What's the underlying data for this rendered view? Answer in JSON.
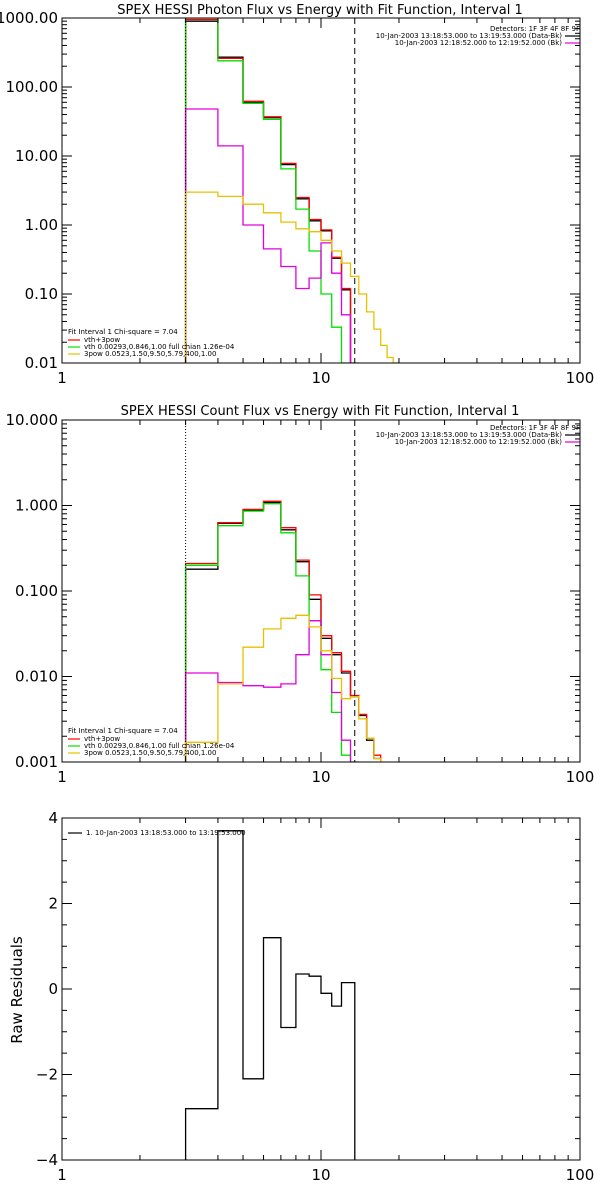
{
  "chart_data": [
    {
      "type": "line",
      "title": "SPEX HESSI Photon Flux vs Energy with Fit Function, Interval 1",
      "xscale": "log",
      "yscale": "log",
      "xlim": [
        1,
        100
      ],
      "ylim": [
        0.01,
        1000
      ],
      "xticks": [
        "1",
        "10",
        "100"
      ],
      "yticks": [
        "0.01",
        "0.10",
        "1.00",
        "10.00",
        "100.00",
        "1000.00"
      ],
      "ytick_values": [
        0.01,
        0.1,
        1,
        10,
        100,
        1000
      ],
      "detectors_text": "Detectors: 1F 3F 4F 8F 9F",
      "legend_right": [
        {
          "text": "10-Jan-2003 13:18:53.000 to 13:19:53.000 (Data-Bk)",
          "color": "#000000"
        },
        {
          "text": "10-Jan-2003 12:18:52.000 to 12:19:52.000 (Bk)",
          "color": "#e000e0"
        }
      ],
      "legend_left": [
        {
          "text": "Fit Interval 1     Chi-square = 7.04",
          "color": ""
        },
        {
          "text": "vth+3pow",
          "color": "#ff0000"
        },
        {
          "text": "vth 0.00293,0.846,1.00   full chian 1.26e-04",
          "color": "#00e000"
        },
        {
          "text": "3pow 0.0523,1.50,9.50,5.79,400,1.00",
          "color": "#e8c000"
        }
      ],
      "vlines": [
        {
          "x": 3.0,
          "style": "dotted"
        },
        {
          "x": 13.5,
          "style": "dashed"
        }
      ],
      "edges": [
        3,
        4,
        5,
        6,
        7,
        8,
        9,
        10,
        11,
        12,
        13,
        14,
        15,
        16,
        17,
        18,
        19,
        20
      ],
      "series": [
        {
          "color": "#000000",
          "values": [
            900,
            270,
            60,
            36,
            7.5,
            2.4,
            1.15,
            0.82,
            0.33,
            0.115,
            null,
            null,
            null,
            null,
            null,
            null,
            null
          ]
        },
        {
          "color": "#ff0000",
          "values": [
            950,
            260,
            62,
            37,
            7.8,
            2.5,
            1.2,
            0.85,
            0.34,
            0.12,
            null,
            null,
            null,
            null,
            null,
            null,
            null
          ]
        },
        {
          "color": "#00e000",
          "values": [
            1000,
            240,
            58,
            34,
            6.5,
            1.7,
            0.42,
            0.1,
            0.033,
            0.01,
            null,
            null,
            null,
            null,
            null,
            null,
            null
          ]
        },
        {
          "color": "#e000e0",
          "values": [
            48,
            14,
            1.0,
            0.45,
            0.25,
            0.12,
            0.17,
            0.55,
            0.2,
            0.05,
            0.008,
            null,
            null,
            null,
            null,
            null,
            null
          ]
        },
        {
          "color": "#e8c000",
          "values": [
            3.0,
            2.6,
            2.0,
            1.5,
            1.1,
            0.88,
            0.8,
            0.6,
            0.42,
            0.28,
            0.18,
            0.1,
            0.055,
            0.031,
            0.018,
            0.012,
            0.009
          ]
        }
      ]
    },
    {
      "type": "line",
      "title": "SPEX HESSI Count Flux vs Energy with Fit Function, Interval 1",
      "xscale": "log",
      "yscale": "log",
      "xlim": [
        1,
        100
      ],
      "ylim": [
        0.001,
        10
      ],
      "xticks": [
        "1",
        "10",
        "100"
      ],
      "yticks": [
        "0.001",
        "0.010",
        "0.100",
        "1.000",
        "10.000"
      ],
      "ytick_values": [
        0.001,
        0.01,
        0.1,
        1,
        10
      ],
      "detectors_text": "Detectors: 1F 3F 4F 8F 9F",
      "legend_right": [
        {
          "text": "10-Jan-2003 13:18:53.000 to 13:19:53.000 (Data-Bk)",
          "color": "#000000"
        },
        {
          "text": "10-Jan-2003 12:18:52.000 to 12:19:52.000 (Bk)",
          "color": "#e000e0"
        }
      ],
      "legend_left": [
        {
          "text": "Fit Interval 1     Chi-square = 7.04",
          "color": ""
        },
        {
          "text": "vth+3pow",
          "color": "#ff0000"
        },
        {
          "text": "vth 0.00293,0.846,1.00   full chian 1.26e-04",
          "color": "#00e000"
        },
        {
          "text": "3pow 0.0523,1.50,9.50,5.79,400,1.00",
          "color": "#e8c000"
        }
      ],
      "vlines": [
        {
          "x": 3.0,
          "style": "dotted"
        },
        {
          "x": 13.5,
          "style": "dashed"
        }
      ],
      "edges": [
        3,
        4,
        5,
        6,
        7,
        8,
        9,
        10,
        11,
        12,
        13,
        14,
        15,
        16,
        17,
        18,
        19,
        20
      ],
      "series": [
        {
          "color": "#000000",
          "values": [
            0.18,
            0.62,
            0.88,
            1.08,
            0.52,
            0.22,
            0.08,
            0.028,
            0.018,
            0.011,
            0.0058,
            0.0035,
            0.0018,
            0.0011,
            null,
            null,
            null
          ]
        },
        {
          "color": "#ff0000",
          "values": [
            0.21,
            0.63,
            0.9,
            1.12,
            0.55,
            0.23,
            0.09,
            0.03,
            0.019,
            0.0115,
            0.006,
            0.0036,
            0.0019,
            0.0012,
            null,
            null,
            null
          ]
        },
        {
          "color": "#00e000",
          "values": [
            0.2,
            0.58,
            0.86,
            1.05,
            0.48,
            0.15,
            0.045,
            0.012,
            0.0038,
            0.0012,
            null,
            null,
            null,
            null,
            null,
            null,
            null
          ]
        },
        {
          "color": "#e000e0",
          "values": [
            0.011,
            0.0085,
            0.0078,
            0.0075,
            0.0082,
            0.018,
            0.045,
            0.018,
            0.0065,
            0.0018,
            0.0008,
            null,
            null,
            null,
            null,
            null,
            null
          ]
        },
        {
          "color": "#e8c000",
          "values": [
            0.0017,
            0.0082,
            0.022,
            0.036,
            0.048,
            0.052,
            0.038,
            0.02,
            0.0095,
            0.0055,
            0.0058,
            0.0032,
            0.0019,
            0.0011,
            null,
            null,
            null
          ]
        }
      ]
    },
    {
      "type": "line",
      "title": "",
      "ylabel": "Raw Residuals",
      "xscale": "log",
      "yscale": "linear",
      "xlim": [
        1,
        100
      ],
      "ylim": [
        -4,
        4
      ],
      "xticks": [
        "1",
        "10",
        "100"
      ],
      "yticks": [
        "−4",
        "−2",
        "0",
        "2",
        "4"
      ],
      "ytick_values": [
        -4,
        -2,
        0,
        2,
        4
      ],
      "legend": [
        {
          "text": "1. 10-Jan-2003 13:18:53.000 to 13:19:53.000",
          "color": "#000000"
        }
      ],
      "edges": [
        3,
        4,
        5,
        6,
        7,
        8,
        9,
        10,
        11,
        12,
        13.5
      ],
      "series": [
        {
          "color": "#000000",
          "values": [
            -2.8,
            3.7,
            -2.1,
            1.2,
            -0.9,
            0.35,
            0.3,
            -0.1,
            -0.4,
            0.15
          ]
        }
      ]
    }
  ]
}
